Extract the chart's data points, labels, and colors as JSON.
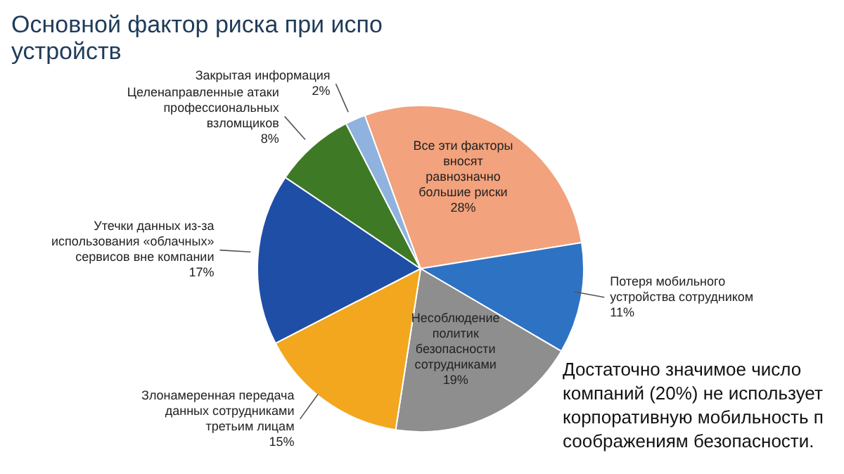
{
  "chart_data": {
    "type": "pie",
    "title": "Основной фактор риска при испо",
    "subtitle": "устройств",
    "categories": [
      "Все эти факторы вносят равнозначно большие риски",
      "Потеря мобильного устройства сотрудником",
      "Несоблюдение политик безопасности сотрудниками",
      "Злонамеренная передача данных сотрудниками третьим лицам",
      "Утечки данных из-за использования «облачных» сервисов вне компании",
      "Целенаправленные атаки профессиональных взломщиков",
      "Закрытая информация"
    ],
    "values": [
      28,
      11,
      19,
      15,
      17,
      8,
      2
    ],
    "value_labels": [
      "28%",
      "11%",
      "19%",
      "15%",
      "17%",
      "8%",
      "2%"
    ],
    "colors": [
      "#f2a27c",
      "#2e72c4",
      "#8e8e8e",
      "#f2a71e",
      "#1f4ea6",
      "#3e7a25",
      "#8fb2de"
    ],
    "legend": false,
    "annotations": [
      "Достаточно значимое число компаний (20%) не использует корпоративную мобильность п соображениям безопасности."
    ]
  }
}
